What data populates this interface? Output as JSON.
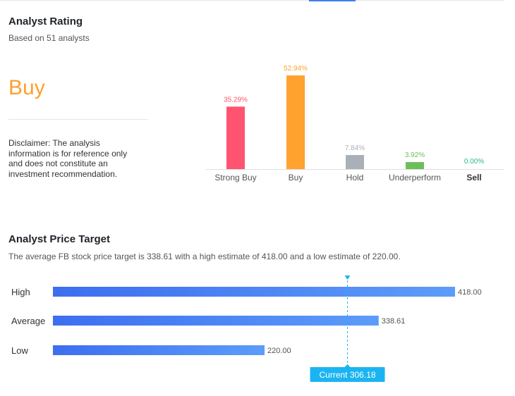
{
  "rating": {
    "title": "Analyst Rating",
    "subtitle": "Based on 51 analysts",
    "consensus": "Buy",
    "disclaimer": "Disclaimer: The analysis information is for reference only and does not constitute an investment recommendation."
  },
  "target": {
    "title": "Analyst Price Target",
    "description": "The average FB stock price target is 338.61 with a high estimate of 418.00 and a low estimate of 220.00."
  },
  "colors": {
    "strong_buy": "#ff5470",
    "buy": "#ffa22e",
    "hold": "#aab0b8",
    "underperform": "#6cbf58",
    "sell": "#2bb58a",
    "price_bar_start": "#3d6ef0",
    "price_bar_end": "#5c9cf9",
    "current": "#1ab4f2",
    "consensus": "#ff9f2e"
  },
  "chart_data": [
    {
      "type": "bar",
      "categories": [
        "Strong Buy",
        "Buy",
        "Hold",
        "Underperform",
        "Sell"
      ],
      "values": [
        35.29,
        52.94,
        7.84,
        3.92,
        0.0
      ],
      "value_labels": [
        "35.29%",
        "52.94%",
        "7.84%",
        "3.92%",
        "0.00%"
      ],
      "ylim": [
        0,
        52.94
      ],
      "grid": false
    },
    {
      "type": "bar",
      "orientation": "horizontal",
      "categories": [
        "High",
        "Average",
        "Low"
      ],
      "values": [
        418.0,
        338.61,
        220.0
      ],
      "value_labels": [
        "418.00",
        "338.61",
        "220.00"
      ],
      "xlim": [
        0,
        418.0
      ],
      "current": {
        "label": "Current 306.18",
        "value": 306.18
      },
      "grid": false
    }
  ]
}
